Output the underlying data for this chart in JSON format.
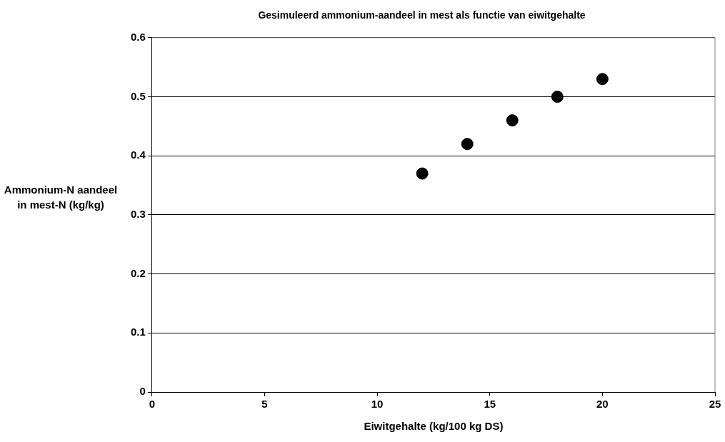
{
  "chart_data": {
    "type": "scatter",
    "title": "Gesimuleerd ammonium-aandeel in mest als functie van eiwitgehalte",
    "xlabel": "Eiwitgehalte (kg/100 kg DS)",
    "ylabel": "Ammonium-N aandeel in mest-N (kg/kg)",
    "x": [
      12,
      14,
      16,
      18,
      20
    ],
    "series": [
      {
        "color": "#000000",
        "values": [
          0.37,
          0.42,
          0.46,
          0.5,
          0.53
        ]
      }
    ],
    "xlim": [
      0,
      25
    ],
    "xticks": [
      0,
      5,
      10,
      15,
      20,
      25
    ],
    "ylim": [
      0,
      0.6
    ],
    "yticks": [
      0,
      0.1,
      0.2,
      0.3,
      0.4,
      0.5,
      0.6
    ],
    "grid": "y",
    "legend": false,
    "marker": "circle"
  }
}
